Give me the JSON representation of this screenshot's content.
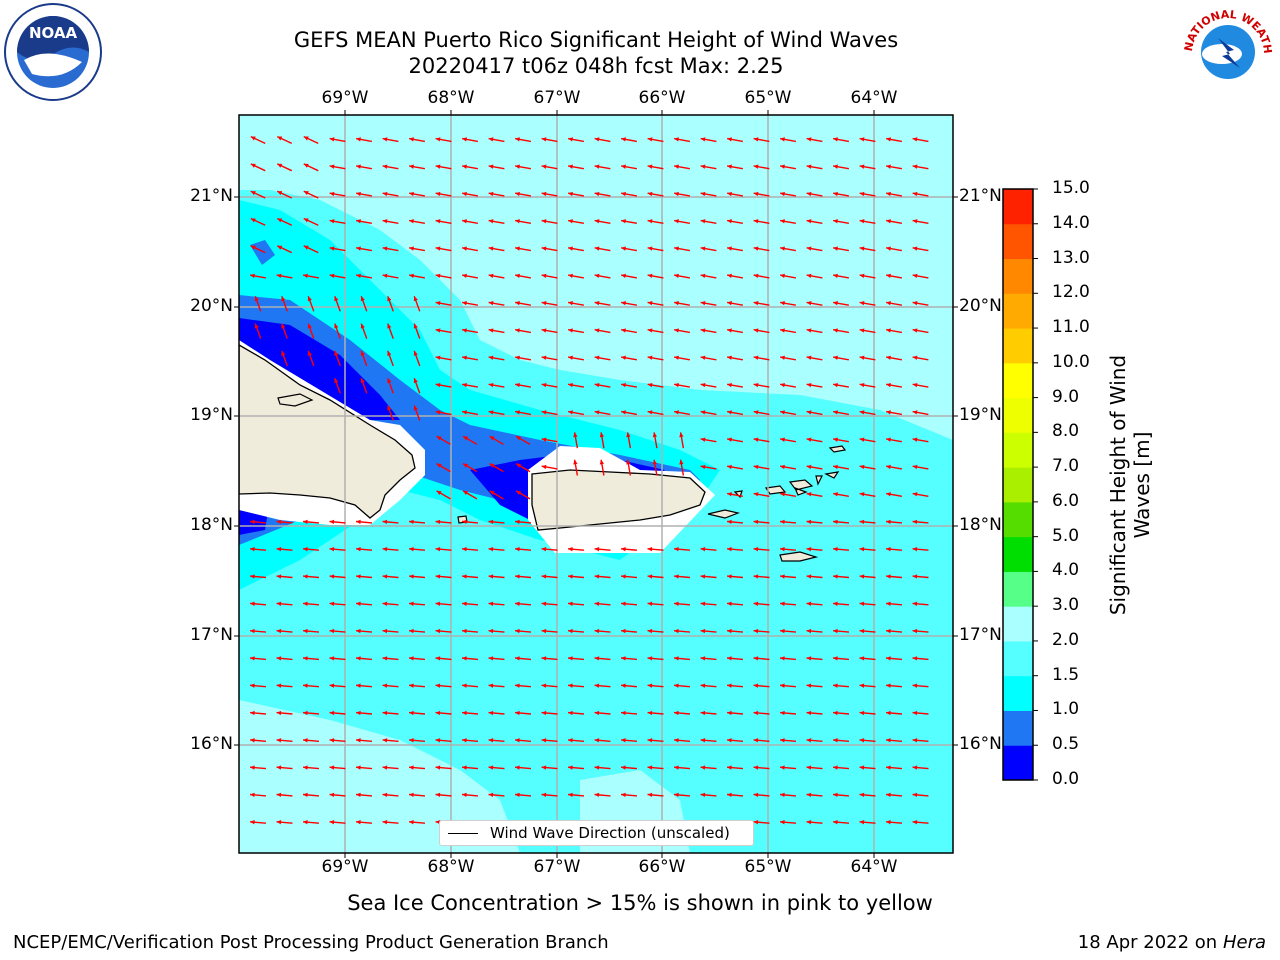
{
  "title_line1": "GEFS MEAN Puerto Rico Significant Height of Wind Waves",
  "title_line2": "20220417 t06z 048h fcst   Max: 2.25",
  "lon_labels": [
    "69°W",
    "68°W",
    "67°W",
    "66°W",
    "65°W",
    "64°W"
  ],
  "lat_labels": [
    "21°N",
    "20°N",
    "19°N",
    "18°N",
    "17°N",
    "16°N"
  ],
  "colorbar": {
    "title_line1": "Significant Height of Wind",
    "title_line2": "Waves [m]",
    "ticks": [
      "0.0",
      "0.5",
      "1.0",
      "1.5",
      "2.0",
      "3.0",
      "4.0",
      "5.0",
      "6.0",
      "7.0",
      "8.0",
      "9.0",
      "10.0",
      "11.0",
      "12.0",
      "13.0",
      "14.0",
      "15.0"
    ],
    "colors": [
      "#0000ff",
      "#1f77f4",
      "#00ffff",
      "#55ffff",
      "#aaffff",
      "#55ff88",
      "#00dd00",
      "#55dd00",
      "#aaee00",
      "#ccff00",
      "#eeff00",
      "#ffff00",
      "#ffcc00",
      "#ffaa00",
      "#ff8800",
      "#ff5500",
      "#ff2200"
    ]
  },
  "legend_label": "Wind Wave Direction (unscaled)",
  "footnote": "Sea Ice Concentration > 15% is shown in pink to yellow",
  "credit": "NCEP/EMC/Verification Post Processing Product Generation Branch",
  "date_text": "18 Apr 2022 on ",
  "machine": "Hera",
  "logos": {
    "left": "NOAA",
    "right": "NATIONAL WEATHER SERVICE"
  },
  "map_data": {
    "extent_lon": [
      -70.0,
      -63.3
    ],
    "extent_lat": [
      15.0,
      21.75
    ],
    "max_value": 2.25,
    "arrow_color": "#ff0000",
    "land_color": "#efecdc"
  }
}
